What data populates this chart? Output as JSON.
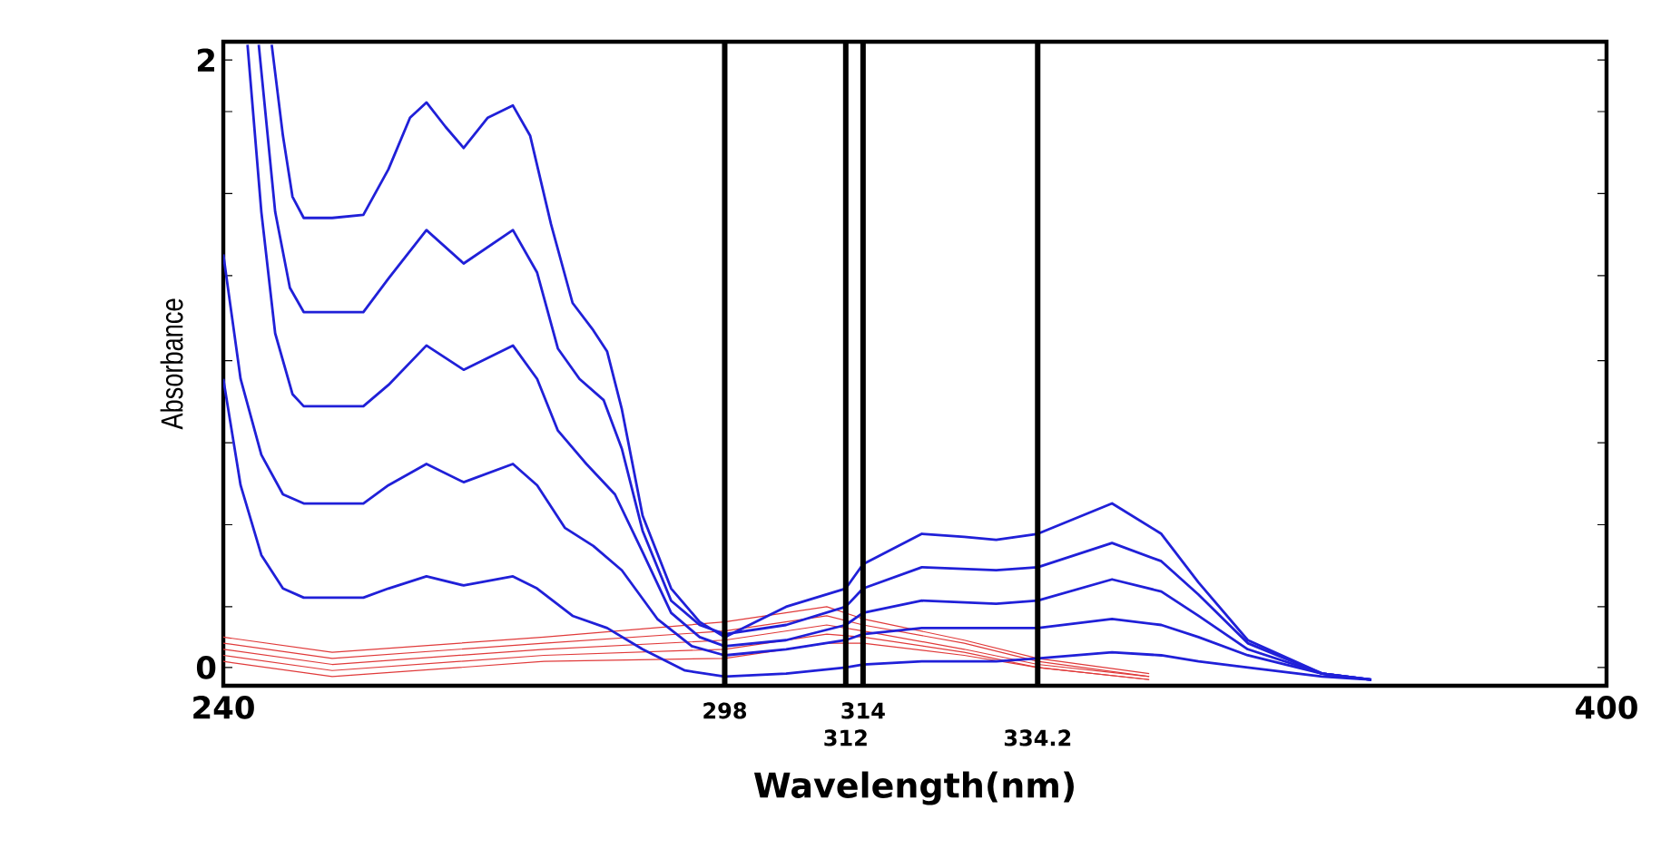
{
  "chart_data": {
    "type": "line",
    "xlabel": "Wavelength(nm)",
    "ylabel": "Absorbance",
    "xlim": [
      240,
      400
    ],
    "xticks": [
      240,
      400
    ],
    "ylim": [
      -0.06,
      2.06
    ],
    "yticks": [
      0,
      {
        "value": 0.2,
        "label": null
      },
      {
        "value": 0.47,
        "label": null
      },
      {
        "value": 0.74,
        "label": null
      },
      {
        "value": 1.01,
        "label": null
      },
      {
        "value": 1.29,
        "label": null
      },
      {
        "value": 1.56,
        "label": null
      },
      {
        "value": 1.83,
        "label": null
      },
      2
    ],
    "marker": "none",
    "line_style": "solid",
    "ref_lines": [
      {
        "axis": "x",
        "value": 298,
        "label": "298",
        "color": "#000000"
      },
      {
        "axis": "x",
        "value": 312,
        "label": "312",
        "color": "#000000"
      },
      {
        "axis": "x",
        "value": 314,
        "label": "314",
        "color": "#000000"
      },
      {
        "axis": "x",
        "value": 334.2,
        "label": "334.2",
        "color": "#000000"
      }
    ],
    "series": [
      {
        "color": "#e03a3a",
        "x": [
          240,
          252.6,
          277.1,
          298,
          309.8,
          314,
          325.7,
          334.2,
          347.1
        ],
        "values": [
          0.02,
          -0.03,
          0.02,
          0.03,
          0.08,
          0.08,
          0.04,
          0.0,
          -0.04
        ]
      },
      {
        "color": "#e03a3a",
        "x": [
          240,
          252.6,
          277.1,
          298,
          309.8,
          314,
          325.7,
          334.2,
          347.1
        ],
        "values": [
          0.04,
          -0.01,
          0.04,
          0.06,
          0.11,
          0.1,
          0.05,
          0.0,
          -0.04
        ]
      },
      {
        "color": "#e03a3a",
        "x": [
          240,
          252.6,
          277.1,
          298,
          309.8,
          314,
          325.7,
          334.2,
          347.1
        ],
        "values": [
          0.06,
          0.01,
          0.06,
          0.09,
          0.14,
          0.12,
          0.06,
          0.01,
          -0.03
        ]
      },
      {
        "color": "#e03a3a",
        "x": [
          240,
          252.6,
          277.1,
          298,
          309.8,
          314,
          325.7,
          334.2,
          347.1
        ],
        "values": [
          0.08,
          0.03,
          0.08,
          0.12,
          0.17,
          0.14,
          0.08,
          0.02,
          -0.03
        ]
      },
      {
        "color": "#e03a3a",
        "x": [
          240,
          252.6,
          277.1,
          298,
          309.8,
          314,
          325.7,
          334.2,
          347.1
        ],
        "values": [
          0.1,
          0.05,
          0.1,
          0.15,
          0.2,
          0.16,
          0.09,
          0.03,
          -0.02
        ]
      },
      {
        "color": "#2020d8",
        "x": [
          240,
          242.0,
          244.4,
          246.9,
          249.3,
          256.2,
          259.1,
          263.5,
          267.8,
          273.5,
          276.3,
          280.4,
          284.4,
          288.5,
          293.4,
          298,
          305.1,
          312,
          314,
          320.8,
          329.4,
          334.2,
          342.8,
          348.5,
          352.8,
          358.5,
          367.1,
          372.8
        ],
        "values": [
          0.95,
          0.6,
          0.37,
          0.26,
          0.23,
          0.23,
          0.26,
          0.3,
          0.27,
          0.3,
          0.26,
          0.17,
          0.13,
          0.06,
          -0.01,
          -0.03,
          -0.02,
          0.0,
          0.01,
          0.02,
          0.02,
          0.03,
          0.05,
          0.04,
          0.02,
          0.0,
          -0.03,
          -0.04
        ]
      },
      {
        "color": "#2020d8",
        "x": [
          240,
          242.0,
          244.4,
          246.9,
          249.3,
          256.2,
          259.1,
          263.5,
          267.8,
          273.5,
          276.3,
          279.5,
          282.8,
          286.1,
          290.2,
          294.2,
          298,
          305.1,
          312,
          314,
          320.8,
          329.4,
          334.2,
          342.8,
          348.5,
          352.8,
          358.5,
          367.1,
          372.8
        ],
        "values": [
          1.36,
          0.95,
          0.7,
          0.57,
          0.54,
          0.54,
          0.6,
          0.67,
          0.61,
          0.67,
          0.6,
          0.46,
          0.4,
          0.32,
          0.16,
          0.07,
          0.04,
          0.06,
          0.09,
          0.11,
          0.13,
          0.13,
          0.13,
          0.16,
          0.14,
          0.1,
          0.04,
          -0.02,
          -0.04
        ]
      },
      {
        "color": "#2020d8",
        "x": [
          242.8,
          244.4,
          246.0,
          248.0,
          249.3,
          256.2,
          259.1,
          263.5,
          267.8,
          273.5,
          276.3,
          278.7,
          282.0,
          285.3,
          288.5,
          291.8,
          295.1,
          298,
          305.1,
          312,
          314,
          320.8,
          329.4,
          334.2,
          342.8,
          348.5,
          352.8,
          358.5,
          367.1,
          372.8
        ],
        "values": [
          2.05,
          1.5,
          1.1,
          0.9,
          0.86,
          0.86,
          0.93,
          1.06,
          0.98,
          1.06,
          0.95,
          0.78,
          0.67,
          0.57,
          0.38,
          0.18,
          0.1,
          0.07,
          0.09,
          0.14,
          0.18,
          0.22,
          0.21,
          0.22,
          0.29,
          0.25,
          0.17,
          0.06,
          -0.02,
          -0.04
        ]
      },
      {
        "color": "#2020d8",
        "x": [
          244.1,
          246.0,
          247.7,
          249.3,
          256.2,
          259.1,
          263.5,
          267.8,
          273.5,
          276.3,
          278.7,
          281.2,
          284.0,
          286.1,
          288.5,
          291.8,
          295.1,
          298,
          305.1,
          312,
          314,
          320.8,
          329.4,
          334.2,
          342.8,
          348.5,
          352.8,
          358.5,
          367.1,
          372.8
        ],
        "values": [
          2.05,
          1.5,
          1.25,
          1.17,
          1.17,
          1.28,
          1.44,
          1.33,
          1.44,
          1.3,
          1.05,
          0.95,
          0.88,
          0.72,
          0.45,
          0.22,
          0.14,
          0.11,
          0.14,
          0.2,
          0.26,
          0.33,
          0.32,
          0.33,
          0.41,
          0.35,
          0.24,
          0.08,
          -0.02,
          -0.04
        ]
      },
      {
        "color": "#2020d8",
        "x": [
          245.6,
          246.9,
          248.0,
          249.3,
          252.6,
          256.2,
          259.1,
          261.6,
          263.5,
          265.7,
          267.8,
          270.6,
          273.5,
          275.5,
          277.9,
          280.4,
          282.8,
          284.4,
          286.1,
          288.5,
          291.8,
          295.1,
          298,
          305.1,
          312,
          314,
          320.8,
          325.7,
          329.4,
          334.2,
          342.8,
          348.5,
          352.8,
          358.5,
          367.1,
          372.8
        ],
        "values": [
          2.05,
          1.75,
          1.55,
          1.48,
          1.48,
          1.49,
          1.64,
          1.81,
          1.86,
          1.78,
          1.71,
          1.81,
          1.85,
          1.75,
          1.46,
          1.2,
          1.11,
          1.04,
          0.85,
          0.5,
          0.26,
          0.15,
          0.1,
          0.2,
          0.26,
          0.34,
          0.44,
          0.43,
          0.42,
          0.44,
          0.54,
          0.44,
          0.28,
          0.09,
          -0.02,
          -0.04
        ]
      }
    ]
  }
}
